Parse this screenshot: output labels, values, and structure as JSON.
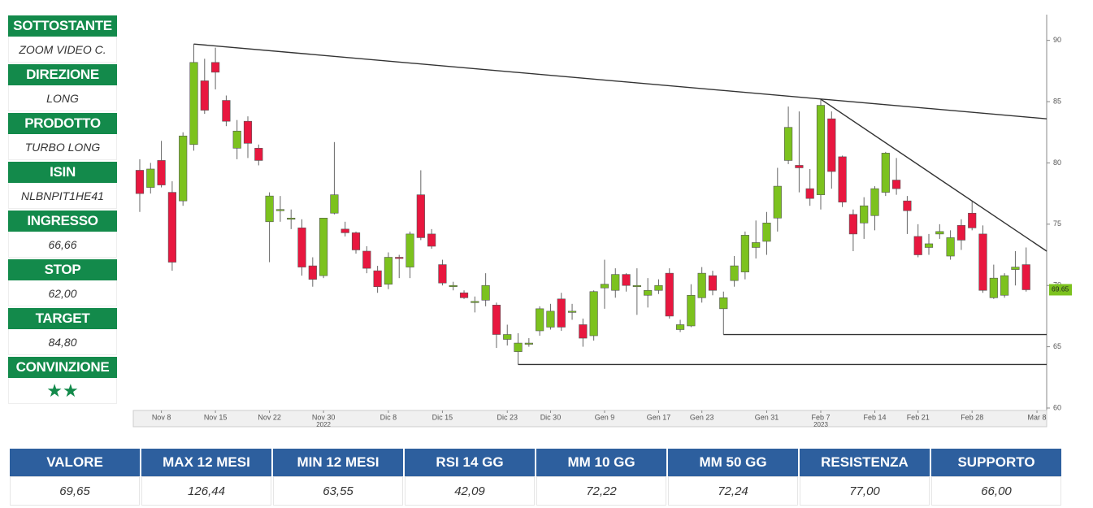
{
  "sidebar": [
    {
      "label": "SOTTOSTANTE",
      "value": "ZOOM VIDEO C."
    },
    {
      "label": "DIREZIONE",
      "value": "LONG"
    },
    {
      "label": "PRODOTTO",
      "value": "TURBO LONG"
    },
    {
      "label": "ISIN",
      "value": "NLBNPIT1HE41"
    },
    {
      "label": "INGRESSO",
      "value": "66,66"
    },
    {
      "label": "STOP",
      "value": "62,00"
    },
    {
      "label": "TARGET",
      "value": "84,80"
    },
    {
      "label": "CONVINZIONE",
      "value": "★★"
    }
  ],
  "chart_data": {
    "type": "candlestick",
    "up_color": "#7cc21e",
    "down_color": "#e8173f",
    "categories": [
      null,
      null,
      "Nov 8",
      null,
      null,
      null,
      null,
      "Nov 15",
      null,
      null,
      null,
      null,
      "Nov 22",
      null,
      null,
      null,
      null,
      "Nov 30",
      null,
      null,
      null,
      null,
      null,
      "Dic 8",
      null,
      null,
      null,
      null,
      "Dic 15",
      null,
      null,
      null,
      null,
      null,
      "Dic 23",
      null,
      null,
      null,
      "Dic 30",
      null,
      null,
      null,
      null,
      "Gen 9",
      null,
      null,
      null,
      null,
      "Gen 17",
      null,
      null,
      null,
      "Gen 23",
      null,
      null,
      null,
      null,
      null,
      "Gen 31",
      null,
      null,
      null,
      null,
      "Feb 7",
      null,
      null,
      null,
      null,
      "Feb 14",
      null,
      null,
      null,
      "Feb 21",
      null,
      null,
      null,
      null,
      "Feb 28",
      null,
      null,
      null,
      null,
      null,
      "Mar 8"
    ],
    "years": [
      {
        "label": "2022",
        "x": 17
      },
      {
        "label": "2023",
        "x": 63
      }
    ],
    "open": [
      79.4,
      78,
      80.2,
      77.6,
      76.9,
      81.5,
      86.7,
      88.2,
      85.1,
      81.2,
      83.4,
      81.2,
      75.2,
      76.1,
      75.4,
      74.7,
      71.6,
      70.8,
      75.9,
      74.6,
      74.3,
      72.8,
      71.2,
      70.1,
      72.3,
      71.5,
      77.4,
      74.2,
      71.7,
      69.9,
      69.4,
      68.6,
      68.8,
      68.4,
      65.6,
      64.6,
      65.2,
      66.3,
      66.6,
      68.9,
      67.8,
      66.8,
      65.9,
      69.8,
      69.6,
      70.9,
      69.9,
      69.2,
      69.6,
      71,
      66.4,
      66.7,
      69,
      70.8,
      68.1,
      70.4,
      71.1,
      73.1,
      73.6,
      75.5,
      80.2,
      79.8,
      77.9,
      77.4,
      83.6,
      80.5,
      75.8,
      75.1,
      75.7,
      77.6,
      78.6,
      76.9,
      74,
      73.1,
      74.2,
      72.4,
      74.9,
      75.9,
      74.2,
      69,
      69.2,
      71.3,
      71.7,
      null
    ],
    "high": [
      80.3,
      80,
      81.8,
      78.5,
      82.5,
      89.7,
      88.5,
      89.4,
      85.5,
      83.5,
      83.8,
      81.5,
      77.6,
      77.3,
      76.2,
      75.4,
      72.3,
      75.5,
      81.7,
      75.2,
      74.4,
      73.2,
      71.6,
      72.7,
      72.5,
      74.4,
      79.4,
      74.6,
      72.1,
      70.3,
      69.6,
      69.1,
      71,
      68.6,
      66.8,
      66.1,
      65.7,
      68.3,
      68.5,
      69.4,
      68.5,
      67.3,
      69.6,
      72.1,
      71.4,
      71,
      71.4,
      70.6,
      70.5,
      71.4,
      67.2,
      70.1,
      71.5,
      71.2,
      69.5,
      72.4,
      74.4,
      75.3,
      76,
      79.6,
      84.6,
      84.2,
      79.5,
      85.2,
      84.2,
      80.6,
      76.2,
      77.2,
      78.1,
      80.9,
      80.4,
      77.3,
      75,
      74.2,
      75,
      74.5,
      75.4,
      76.9,
      74.9,
      71.7,
      71,
      72.8,
      73.1,
      null
    ],
    "low": [
      76,
      77.5,
      78,
      71.2,
      76.5,
      81,
      84,
      86,
      83,
      80.3,
      80.4,
      79.8,
      71.9,
      75.2,
      74.6,
      70.8,
      69.9,
      70.6,
      75.8,
      74,
      72.6,
      71,
      69.4,
      69.7,
      70.6,
      70.6,
      73.7,
      73,
      70,
      69.6,
      68.9,
      67.8,
      68.3,
      64.9,
      65.1,
      63.55,
      65,
      65.9,
      66.4,
      66.3,
      67.2,
      65,
      65.5,
      68.1,
      69,
      69.5,
      67.6,
      68.2,
      69.3,
      67.3,
      66.2,
      66.6,
      68.6,
      69.2,
      66,
      69.9,
      70.5,
      72.2,
      72.5,
      74.4,
      79.9,
      77.6,
      76.5,
      76.2,
      77.9,
      76.4,
      72.8,
      73.8,
      74.5,
      77.3,
      77.4,
      74.2,
      72.3,
      72.5,
      73.8,
      72.1,
      72.9,
      74.5,
      69.4,
      68.9,
      69,
      70,
      69.5,
      null
    ],
    "close": [
      77.5,
      79.5,
      78.2,
      71.9,
      82.2,
      88.2,
      84.3,
      87.4,
      83.4,
      82.6,
      81.6,
      80.2,
      77.3,
      76.2,
      75.5,
      71.5,
      70.5,
      75.5,
      77.4,
      74.3,
      72.9,
      71.4,
      69.9,
      72.3,
      72.2,
      74.2,
      73.9,
      73.2,
      70.2,
      70,
      69,
      68.7,
      70,
      66,
      66,
      65.3,
      65.3,
      68.1,
      67.9,
      66.6,
      67.9,
      65.7,
      69.5,
      70.1,
      70.9,
      70,
      70,
      69.6,
      70,
      67.5,
      66.8,
      69.2,
      71,
      69.6,
      69,
      71.6,
      74.1,
      73.5,
      75.1,
      78.1,
      82.9,
      79.6,
      77.1,
      84.7,
      79.3,
      76.8,
      74.2,
      76.5,
      77.9,
      80.8,
      77.9,
      76.1,
      72.5,
      73.4,
      74.4,
      73.9,
      73.7,
      74.7,
      69.6,
      70.6,
      70.8,
      71.5,
      69.65,
      null
    ],
    "last_price": 69.65,
    "last_color": "#7cc21e",
    "trendlines": [
      {
        "x": [
          5,
          83.9
        ],
        "y": [
          89.7,
          83.6
        ]
      },
      {
        "x": [
          63,
          83.9
        ],
        "y": [
          85.2,
          72.8
        ]
      },
      {
        "x": [
          54,
          83.9
        ],
        "y": [
          66,
          66
        ]
      },
      {
        "x": [
          35,
          83.9
        ],
        "y": [
          63.55,
          63.55
        ]
      }
    ],
    "ylim": [
      59.8,
      92.1
    ],
    "yticks": [
      60,
      65,
      70,
      75,
      80,
      85,
      90
    ],
    "xlim": [
      -0.6,
      83.9
    ]
  },
  "table": {
    "headers": [
      "VALORE",
      "MAX 12 MESI",
      "MIN 12 MESI",
      "RSI 14 GG",
      "MM 10 GG",
      "MM 50 GG",
      "RESISTENZA",
      "SUPPORTO"
    ],
    "rows": [
      [
        "69,65",
        "126,44",
        "63,55",
        "42,09",
        "72,22",
        "72,24",
        "77,00",
        "66,00"
      ]
    ]
  }
}
